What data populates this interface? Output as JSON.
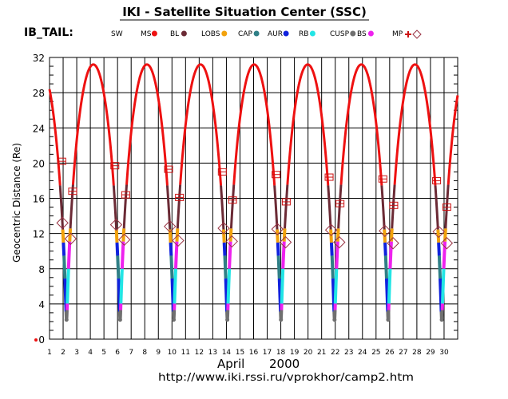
{
  "header": {
    "title": "IKI - Satellite Situation Center (SSC)",
    "satellite": "IB_TAIL:"
  },
  "legend": [
    {
      "label": "SW",
      "color": "#000000",
      "marker": "none"
    },
    {
      "label": "MS",
      "color": "#ee1111",
      "marker": "dot"
    },
    {
      "label": "BL",
      "color": "#6b2a35",
      "marker": "dot"
    },
    {
      "label": "LOBS",
      "color": "#f2a20c",
      "marker": "dot"
    },
    {
      "label": "CAP",
      "color": "#2f7f86",
      "marker": "dot"
    },
    {
      "label": "AUR",
      "color": "#1022dd",
      "marker": "dot"
    },
    {
      "label": "RB",
      "color": "#22e5e5",
      "marker": "dot"
    },
    {
      "label": "CUSP",
      "color": "#707070",
      "marker": "dot"
    },
    {
      "label": "BS",
      "color": "#ee22ee",
      "marker": "dot"
    },
    {
      "label": "MP",
      "color": "#cc1111",
      "marker": "none"
    }
  ],
  "footer": {
    "month_label": "April",
    "year_label": "2000",
    "url": "http://www.iki.rssi.ru/vprokhor/camp2.htm"
  },
  "chart_data": {
    "type": "line",
    "title": "IKI - Satellite Situation Center (SSC)",
    "ylabel": "Geocentric Distance (Re)",
    "xlabel": "April    2000",
    "xlim": [
      1,
      31
    ],
    "ylim": [
      0,
      32
    ],
    "y_ticks": [
      0,
      4,
      8,
      12,
      16,
      20,
      24,
      28,
      32
    ],
    "x_ticks": [
      1,
      2,
      3,
      4,
      5,
      6,
      7,
      8,
      9,
      10,
      11,
      12,
      13,
      14,
      15,
      16,
      17,
      18,
      19,
      20,
      21,
      22,
      23,
      24,
      25,
      26,
      27,
      28,
      29,
      30
    ],
    "grid": true,
    "orbit": {
      "perigee_re": 2.2,
      "apogee_re": 31.2,
      "period_days": 3.94,
      "perigee_day": 2.25,
      "initial_distance_re": 28.5
    },
    "perigee_days": [
      2.25,
      6.19,
      10.13,
      14.07,
      18.01,
      21.95,
      25.89,
      29.83
    ],
    "apogee_days": [
      4.22,
      8.16,
      12.1,
      16.04,
      19.98,
      23.92,
      27.86
    ],
    "bow_shock_crossings": [
      {
        "day": 1.9,
        "r": 20.2
      },
      {
        "day": 2.7,
        "r": 16.8
      },
      {
        "day": 5.8,
        "r": 19.7
      },
      {
        "day": 6.6,
        "r": 16.4
      },
      {
        "day": 9.75,
        "r": 19.3
      },
      {
        "day": 10.55,
        "r": 16.1
      },
      {
        "day": 13.7,
        "r": 19.0
      },
      {
        "day": 14.45,
        "r": 15.8
      },
      {
        "day": 17.65,
        "r": 18.7
      },
      {
        "day": 18.4,
        "r": 15.6
      },
      {
        "day": 21.55,
        "r": 18.4
      },
      {
        "day": 22.35,
        "r": 15.4
      },
      {
        "day": 25.5,
        "r": 18.2
      },
      {
        "day": 26.3,
        "r": 15.2
      },
      {
        "day": 29.45,
        "r": 18.0
      },
      {
        "day": 30.2,
        "r": 15.0
      }
    ],
    "magnetopause_crossings": [
      {
        "day": 1.95,
        "r": 13.2
      },
      {
        "day": 2.55,
        "r": 11.4
      },
      {
        "day": 5.9,
        "r": 13.0
      },
      {
        "day": 6.5,
        "r": 11.3
      },
      {
        "day": 9.85,
        "r": 12.8
      },
      {
        "day": 10.45,
        "r": 11.2
      },
      {
        "day": 13.8,
        "r": 12.6
      },
      {
        "day": 14.4,
        "r": 11.1
      },
      {
        "day": 17.75,
        "r": 12.5
      },
      {
        "day": 18.35,
        "r": 11.0
      },
      {
        "day": 21.7,
        "r": 12.4
      },
      {
        "day": 22.3,
        "r": 11.0
      },
      {
        "day": 25.65,
        "r": 12.3
      },
      {
        "day": 26.25,
        "r": 10.9
      },
      {
        "day": 29.6,
        "r": 12.2
      },
      {
        "day": 30.2,
        "r": 10.9
      }
    ]
  }
}
